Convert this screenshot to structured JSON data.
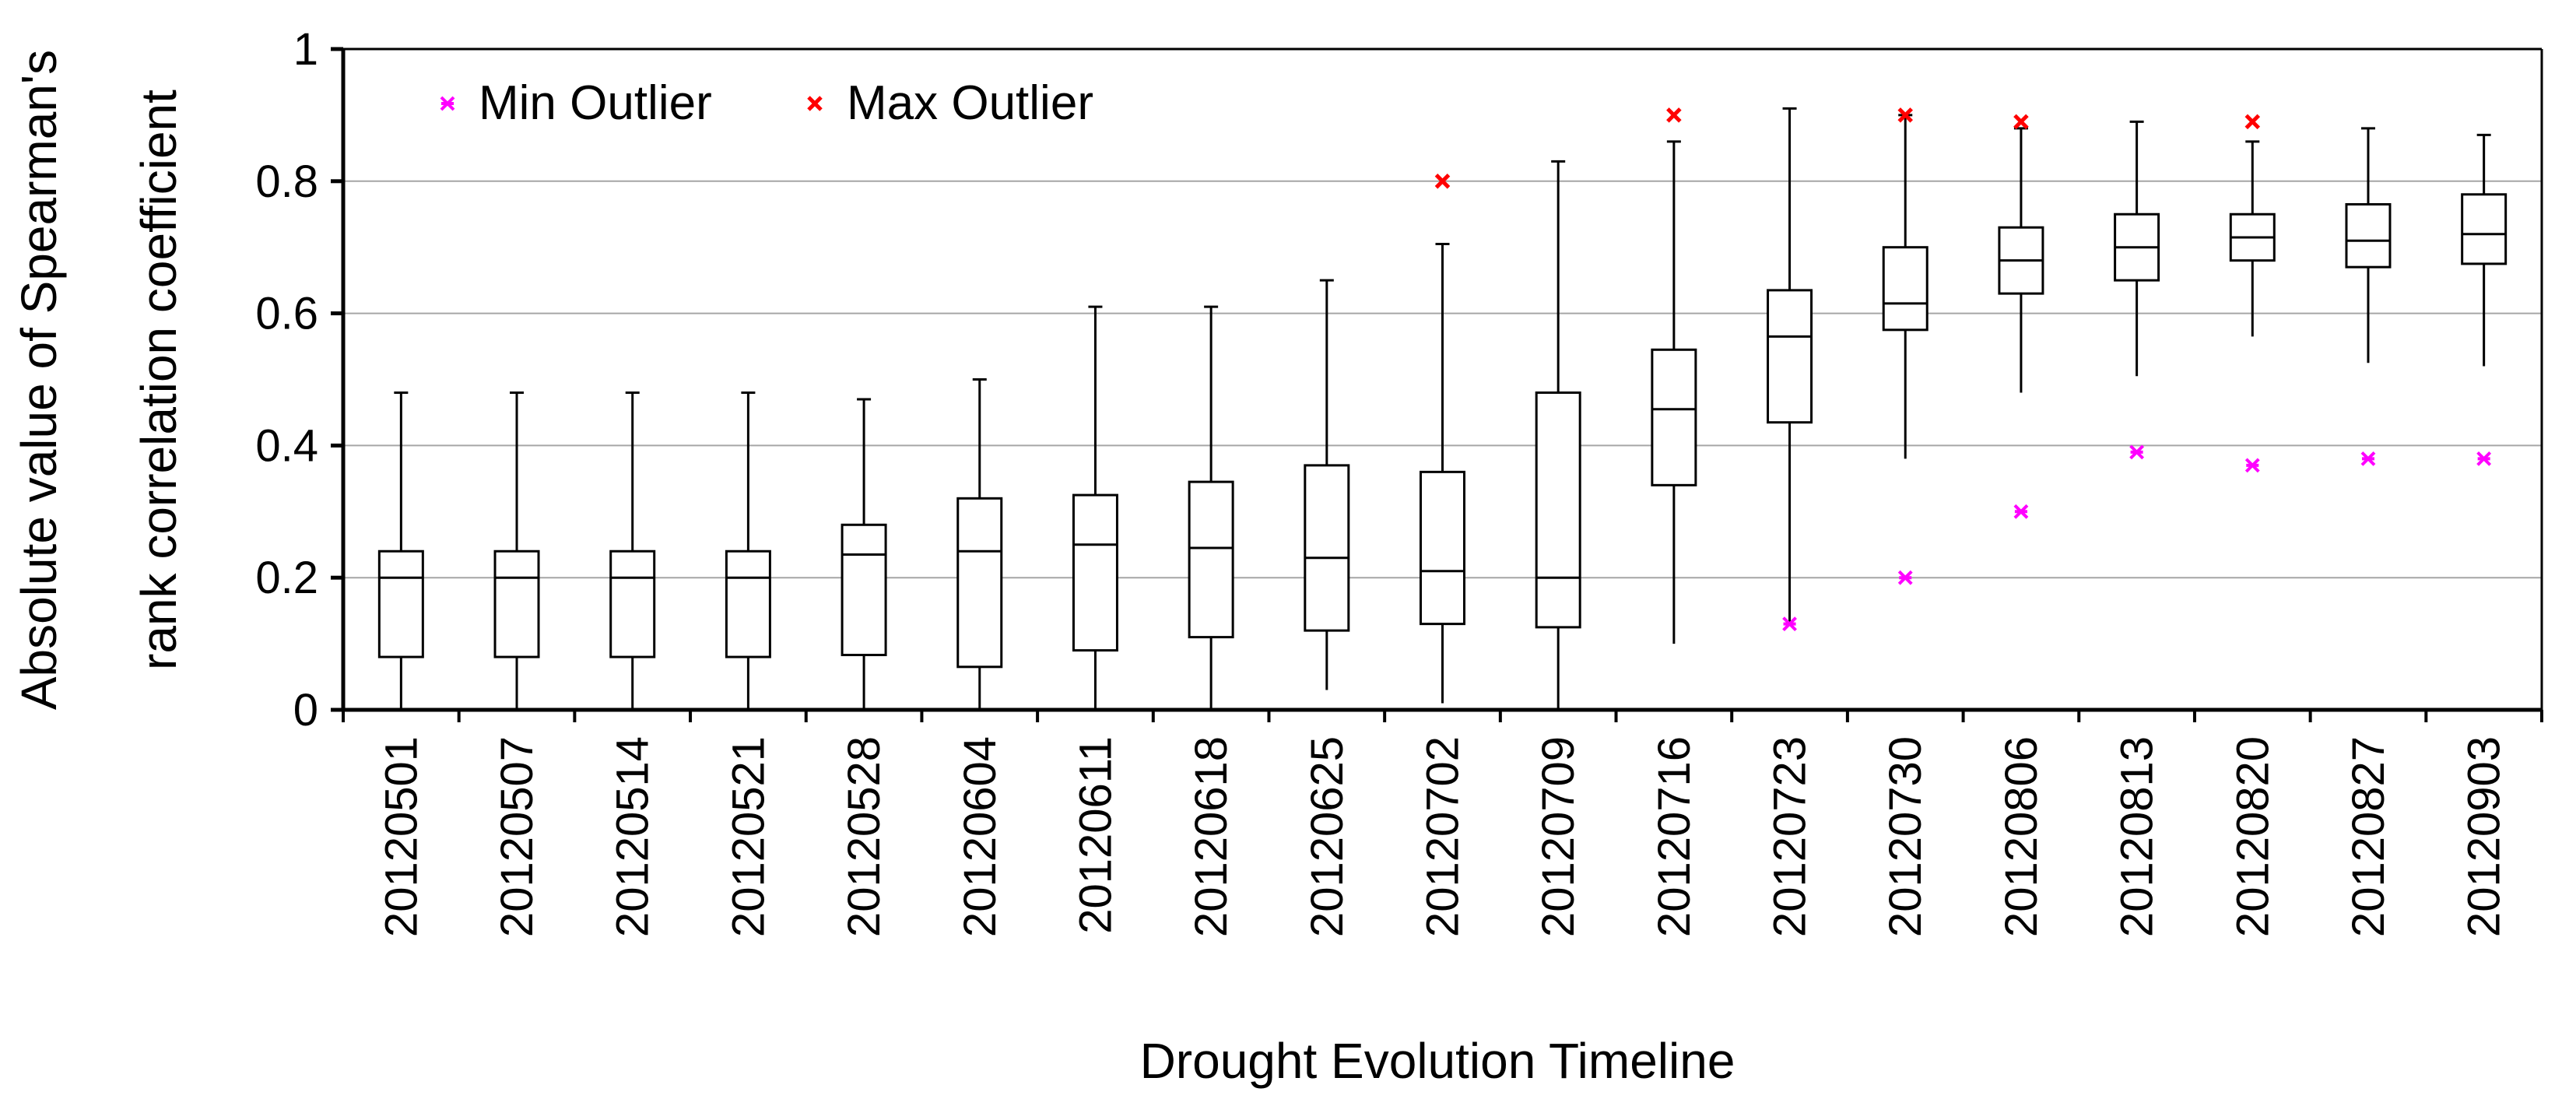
{
  "chart_data": {
    "type": "boxplot",
    "title": "",
    "xlabel": "Drought Evolution Timeline",
    "ylabel_lines": [
      "Absolute value of Spearman's",
      "rank correlation coefficient"
    ],
    "ylim": [
      0,
      1
    ],
    "yticks": [
      0,
      0.2,
      0.4,
      0.6,
      0.8,
      1
    ],
    "ytick_labels": [
      "0",
      "0.2",
      "0.4",
      "0.6",
      "0.8",
      "1"
    ],
    "grid": "horizontal",
    "legend": {
      "placement": "top-left",
      "entries": [
        {
          "label": "Min Outlier",
          "marker": "asterisk",
          "color": "#ff00ff"
        },
        {
          "label": "Max Outlier",
          "marker": "x",
          "color": "#ff0000"
        }
      ]
    },
    "categories": [
      "20120501",
      "20120507",
      "20120514",
      "20120521",
      "20120528",
      "20120604",
      "20120611",
      "20120618",
      "20120625",
      "20120702",
      "20120709",
      "20120716",
      "20120723",
      "20120730",
      "20120806",
      "20120813",
      "20120820",
      "20120827",
      "20120903"
    ],
    "boxes": [
      {
        "min": 0.0,
        "q1": 0.08,
        "median": 0.2,
        "q3": 0.24,
        "max": 0.48
      },
      {
        "min": 0.0,
        "q1": 0.08,
        "median": 0.2,
        "q3": 0.24,
        "max": 0.48
      },
      {
        "min": 0.0,
        "q1": 0.08,
        "median": 0.2,
        "q3": 0.24,
        "max": 0.48
      },
      {
        "min": 0.0,
        "q1": 0.08,
        "median": 0.2,
        "q3": 0.24,
        "max": 0.48
      },
      {
        "min": 0.0,
        "q1": 0.083,
        "median": 0.235,
        "q3": 0.28,
        "max": 0.47
      },
      {
        "min": 0.0,
        "q1": 0.065,
        "median": 0.24,
        "q3": 0.32,
        "max": 0.5
      },
      {
        "min": 0.0,
        "q1": 0.09,
        "median": 0.25,
        "q3": 0.325,
        "max": 0.61
      },
      {
        "min": 0.0,
        "q1": 0.11,
        "median": 0.245,
        "q3": 0.345,
        "max": 0.61
      },
      {
        "min": 0.03,
        "q1": 0.12,
        "median": 0.23,
        "q3": 0.37,
        "max": 0.65
      },
      {
        "min": 0.01,
        "q1": 0.13,
        "median": 0.21,
        "q3": 0.36,
        "max": 0.705
      },
      {
        "min": 0.0,
        "q1": 0.125,
        "median": 0.2,
        "q3": 0.48,
        "max": 0.83
      },
      {
        "min": 0.1,
        "q1": 0.34,
        "median": 0.455,
        "q3": 0.545,
        "max": 0.86
      },
      {
        "min": 0.13,
        "q1": 0.435,
        "median": 0.565,
        "q3": 0.635,
        "max": 0.91
      },
      {
        "min": 0.38,
        "q1": 0.575,
        "median": 0.615,
        "q3": 0.7,
        "max": 0.9
      },
      {
        "min": 0.48,
        "q1": 0.63,
        "median": 0.68,
        "q3": 0.73,
        "max": 0.88
      },
      {
        "min": 0.505,
        "q1": 0.65,
        "median": 0.7,
        "q3": 0.75,
        "max": 0.89
      },
      {
        "min": 0.565,
        "q1": 0.68,
        "median": 0.715,
        "q3": 0.75,
        "max": 0.86
      },
      {
        "min": 0.525,
        "q1": 0.67,
        "median": 0.71,
        "q3": 0.765,
        "max": 0.88
      },
      {
        "min": 0.52,
        "q1": 0.675,
        "median": 0.72,
        "q3": 0.78,
        "max": 0.87
      }
    ],
    "min_outliers": [
      {
        "category": "20120723",
        "value": 0.13
      },
      {
        "category": "20120730",
        "value": 0.2
      },
      {
        "category": "20120806",
        "value": 0.3
      },
      {
        "category": "20120813",
        "value": 0.39
      },
      {
        "category": "20120820",
        "value": 0.37
      },
      {
        "category": "20120827",
        "value": 0.38
      },
      {
        "category": "20120903",
        "value": 0.38
      }
    ],
    "max_outliers": [
      {
        "category": "20120702",
        "value": 0.8
      },
      {
        "category": "20120716",
        "value": 0.9
      },
      {
        "category": "20120730",
        "value": 0.9
      },
      {
        "category": "20120806",
        "value": 0.89
      },
      {
        "category": "20120820",
        "value": 0.89
      }
    ],
    "colors": {
      "box": "#000000",
      "grid": "#a6a6a6",
      "min_outlier": "#ff00ff",
      "max_outlier": "#ff0000"
    }
  }
}
